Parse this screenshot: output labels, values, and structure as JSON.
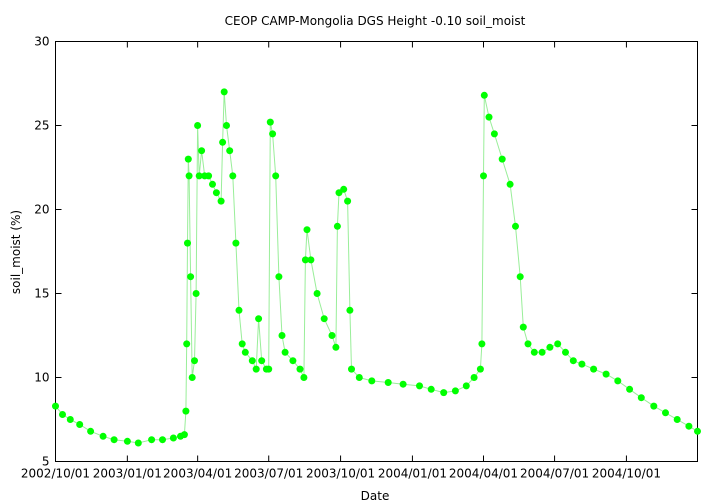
{
  "chart_data": {
    "type": "scatter",
    "title": "CEOP CAMP-Mongolia DGS Height -0.10 soil_moist",
    "xlabel": "Date",
    "ylabel": "soil_moist (%)",
    "xlim": [
      "2002-10-01",
      "2004-12-31"
    ],
    "ylim": [
      5,
      30
    ],
    "y_ticks": [
      5,
      10,
      15,
      20,
      25,
      30
    ],
    "x_tick_labels": [
      "2002/10/01",
      "2003/01/01",
      "2003/04/01",
      "2003/07/01",
      "2003/10/01",
      "2004/01/01",
      "2004/04/01",
      "2004/07/01",
      "2004/10/01"
    ],
    "x_ticks": [
      "2002-10-01",
      "2003-01-01",
      "2003-04-01",
      "2003-07-01",
      "2003-10-01",
      "2004-01-01",
      "2004-04-01",
      "2004-07-01",
      "2004-10-01"
    ],
    "grid": false,
    "series": [
      {
        "name": "soil_moist",
        "color": "#00ff00",
        "marker": "circle",
        "points": [
          [
            "2002-10-01",
            8.3
          ],
          [
            "2002-10-10",
            7.8
          ],
          [
            "2002-10-20",
            7.5
          ],
          [
            "2002-11-01",
            7.2
          ],
          [
            "2002-11-15",
            6.8
          ],
          [
            "2002-12-01",
            6.5
          ],
          [
            "2002-12-15",
            6.3
          ],
          [
            "2003-01-01",
            6.2
          ],
          [
            "2003-01-15",
            6.1
          ],
          [
            "2003-02-01",
            6.3
          ],
          [
            "2003-02-15",
            6.3
          ],
          [
            "2003-03-01",
            6.4
          ],
          [
            "2003-03-10",
            6.5
          ],
          [
            "2003-03-15",
            6.6
          ],
          [
            "2003-03-17",
            8.0
          ],
          [
            "2003-03-18",
            12.0
          ],
          [
            "2003-03-19",
            18.0
          ],
          [
            "2003-03-20",
            23.0
          ],
          [
            "2003-03-21",
            22.0
          ],
          [
            "2003-03-23",
            16.0
          ],
          [
            "2003-03-25",
            10.0
          ],
          [
            "2003-03-28",
            11.0
          ],
          [
            "2003-03-30",
            15.0
          ],
          [
            "2003-04-01",
            25.0
          ],
          [
            "2003-04-03",
            22.0
          ],
          [
            "2003-04-06",
            23.5
          ],
          [
            "2003-04-10",
            22.0
          ],
          [
            "2003-04-15",
            22.0
          ],
          [
            "2003-04-20",
            21.5
          ],
          [
            "2003-04-25",
            21.0
          ],
          [
            "2003-05-01",
            20.5
          ],
          [
            "2003-05-03",
            24.0
          ],
          [
            "2003-05-05",
            27.0
          ],
          [
            "2003-05-08",
            25.0
          ],
          [
            "2003-05-12",
            23.5
          ],
          [
            "2003-05-16",
            22.0
          ],
          [
            "2003-05-20",
            18.0
          ],
          [
            "2003-05-24",
            14.0
          ],
          [
            "2003-05-28",
            12.0
          ],
          [
            "2003-06-01",
            11.5
          ],
          [
            "2003-06-10",
            11.0
          ],
          [
            "2003-06-15",
            10.5
          ],
          [
            "2003-06-18",
            13.5
          ],
          [
            "2003-06-22",
            11.0
          ],
          [
            "2003-06-28",
            10.5
          ],
          [
            "2003-07-01",
            10.5
          ],
          [
            "2003-07-03",
            25.2
          ],
          [
            "2003-07-06",
            24.5
          ],
          [
            "2003-07-10",
            22.0
          ],
          [
            "2003-07-14",
            16.0
          ],
          [
            "2003-07-18",
            12.5
          ],
          [
            "2003-07-22",
            11.5
          ],
          [
            "2003-08-01",
            11.0
          ],
          [
            "2003-08-10",
            10.5
          ],
          [
            "2003-08-15",
            10.0
          ],
          [
            "2003-08-17",
            17.0
          ],
          [
            "2003-08-19",
            18.8
          ],
          [
            "2003-08-24",
            17.0
          ],
          [
            "2003-09-01",
            15.0
          ],
          [
            "2003-09-10",
            13.5
          ],
          [
            "2003-09-20",
            12.5
          ],
          [
            "2003-09-25",
            11.8
          ],
          [
            "2003-09-27",
            19.0
          ],
          [
            "2003-09-29",
            21.0
          ],
          [
            "2003-10-05",
            21.2
          ],
          [
            "2003-10-10",
            20.5
          ],
          [
            "2003-10-13",
            14.0
          ],
          [
            "2003-10-15",
            10.5
          ],
          [
            "2003-10-25",
            10.0
          ],
          [
            "2003-11-10",
            9.8
          ],
          [
            "2003-12-01",
            9.7
          ],
          [
            "2003-12-20",
            9.6
          ],
          [
            "2004-01-10",
            9.5
          ],
          [
            "2004-01-25",
            9.3
          ],
          [
            "2004-02-10",
            9.1
          ],
          [
            "2004-02-25",
            9.2
          ],
          [
            "2004-03-10",
            9.5
          ],
          [
            "2004-03-20",
            10.0
          ],
          [
            "2004-03-28",
            10.5
          ],
          [
            "2004-03-30",
            12.0
          ],
          [
            "2004-04-01",
            22.0
          ],
          [
            "2004-04-02",
            26.8
          ],
          [
            "2004-04-08",
            25.5
          ],
          [
            "2004-04-15",
            24.5
          ],
          [
            "2004-04-25",
            23.0
          ],
          [
            "2004-05-05",
            21.5
          ],
          [
            "2004-05-12",
            19.0
          ],
          [
            "2004-05-18",
            16.0
          ],
          [
            "2004-05-22",
            13.0
          ],
          [
            "2004-05-28",
            12.0
          ],
          [
            "2004-06-05",
            11.5
          ],
          [
            "2004-06-15",
            11.5
          ],
          [
            "2004-06-25",
            11.8
          ],
          [
            "2004-07-05",
            12.0
          ],
          [
            "2004-07-15",
            11.5
          ],
          [
            "2004-07-25",
            11.0
          ],
          [
            "2004-08-05",
            10.8
          ],
          [
            "2004-08-20",
            10.5
          ],
          [
            "2004-09-05",
            10.2
          ],
          [
            "2004-09-20",
            9.8
          ],
          [
            "2004-10-05",
            9.3
          ],
          [
            "2004-10-20",
            8.8
          ],
          [
            "2004-11-05",
            8.3
          ],
          [
            "2004-11-20",
            7.9
          ],
          [
            "2004-12-05",
            7.5
          ],
          [
            "2004-12-20",
            7.1
          ],
          [
            "2004-12-31",
            6.8
          ]
        ]
      }
    ]
  }
}
